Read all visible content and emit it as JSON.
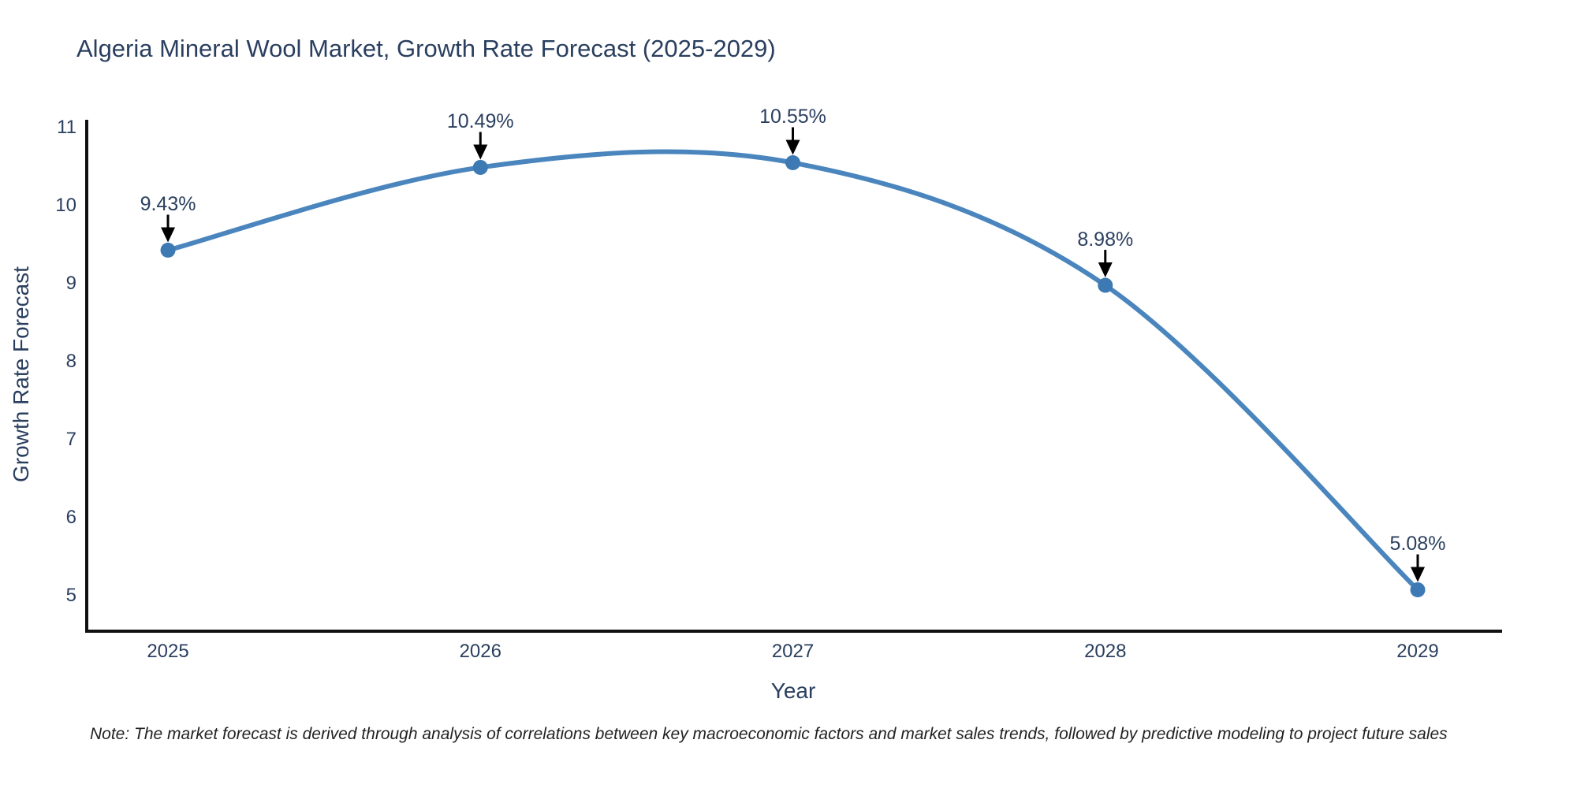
{
  "title": "Algeria Mineral Wool Market, Growth Rate Forecast (2025-2029)",
  "note": "Note: The market forecast is derived through analysis of correlations between key macroeconomic factors and market sales trends, followed by predictive modeling to project future sales",
  "chart_data": {
    "type": "line",
    "line_shape": "spline",
    "title": "Algeria Mineral Wool Market, Growth Rate Forecast (2025-2029)",
    "xlabel": "Year",
    "ylabel": "Growth Rate Forecast",
    "categories": [
      2025,
      2026,
      2027,
      2028,
      2029
    ],
    "series": [
      {
        "name": "Growth Rate Forecast",
        "values": [
          9.43,
          10.49,
          10.55,
          8.98,
          5.08
        ]
      }
    ],
    "point_labels": [
      "9.43%",
      "10.49%",
      "10.55%",
      "8.98%",
      "5.08%"
    ],
    "x_ticks": [
      "2025",
      "2026",
      "2027",
      "2028",
      "2029"
    ],
    "y_ticks": [
      "11",
      "10",
      "9",
      "8",
      "7",
      "6",
      "5"
    ],
    "y_tick_values": [
      11,
      10,
      9,
      8,
      7,
      6,
      5
    ],
    "ylim": [
      4.55,
      11.1
    ],
    "xlim": [
      2024.74,
      2029.27
    ],
    "grid": false,
    "legend_position": "none",
    "markers": true,
    "annotations_have_arrows": true,
    "colors": {
      "line": "#4a86bd",
      "marker": "#3d7ab3",
      "axis": "#111111",
      "text": "#2a3f5f",
      "annotation_arrow": "#000000",
      "background": "#ffffff"
    }
  }
}
